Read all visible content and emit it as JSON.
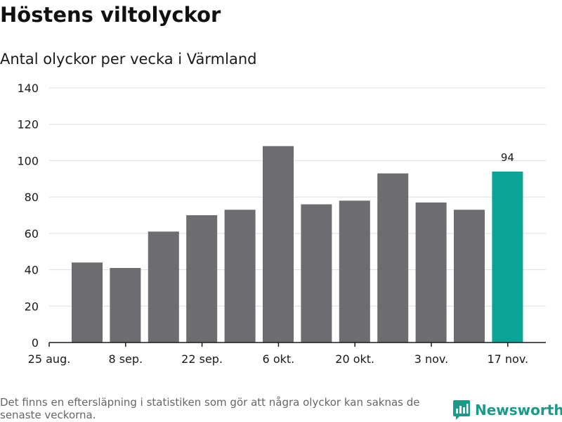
{
  "header": {
    "title": "Höstens viltolyckor",
    "subtitle": "Antal olyckor per vecka i Värmland"
  },
  "footer": {
    "note": "Det finns en eftersläpning i statistiken som gör att några olyckor kan saknas de senaste veckorna.",
    "brand": "Newsworthy",
    "brand_icon": "bar-chart-speech-bubble-icon"
  },
  "colors": {
    "bar": "#6d6c70",
    "highlight": "#0ba396",
    "grid": "#dddddd",
    "axis": "#1a1a1a",
    "brand": "#1a9a8a"
  },
  "chart_data": {
    "type": "bar",
    "title": "Höstens viltolyckor",
    "subtitle": "Antal olyckor per vecka i Värmland",
    "xlabel": "",
    "ylabel": "",
    "ylim": [
      0,
      140
    ],
    "yticks": [
      0,
      20,
      40,
      60,
      80,
      100,
      120,
      140
    ],
    "grid": true,
    "xtick_labels": [
      "25 aug.",
      "8 sep.",
      "22 sep.",
      "6 okt.",
      "20 okt.",
      "3 nov.",
      "17 nov."
    ],
    "values": [
      44,
      41,
      61,
      70,
      73,
      108,
      76,
      78,
      93,
      77,
      73,
      94
    ],
    "highlight_index": 11,
    "data_labels": [
      {
        "index": 11,
        "text": "94"
      }
    ]
  }
}
